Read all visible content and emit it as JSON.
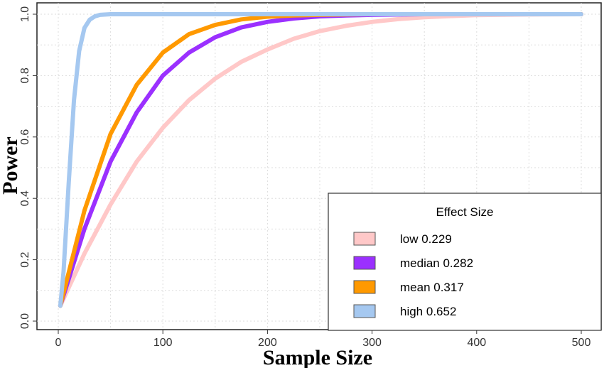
{
  "chart_data": {
    "type": "line",
    "xlabel": "Sample Size",
    "ylabel": "Power",
    "xlim": [
      0,
      500
    ],
    "ylim": [
      0,
      1.0
    ],
    "xticks": [
      0,
      100,
      200,
      300,
      400,
      500
    ],
    "yticks": [
      0.0,
      0.2,
      0.4,
      0.6,
      0.8,
      1.0
    ],
    "xtick_labels": [
      "0",
      "100",
      "200",
      "300",
      "400",
      "500"
    ],
    "ytick_labels": [
      "0.0",
      "0.2",
      "0.4",
      "0.6",
      "0.8",
      "1.0"
    ],
    "grid": true,
    "legend": {
      "title": "Effect Size",
      "position": "bottom-right"
    },
    "series": [
      {
        "name": "low 0.229",
        "color": "#ffc8c8",
        "x": [
          2,
          25,
          50,
          75,
          100,
          125,
          150,
          175,
          200,
          225,
          250,
          275,
          300,
          325,
          350,
          375,
          400,
          450,
          500
        ],
        "values": [
          0.05,
          0.22,
          0.38,
          0.52,
          0.63,
          0.72,
          0.79,
          0.845,
          0.885,
          0.92,
          0.945,
          0.962,
          0.975,
          0.984,
          0.99,
          0.994,
          0.997,
          0.999,
          1.0
        ]
      },
      {
        "name": "median 0.282",
        "color": "#9b30ff",
        "x": [
          2,
          25,
          50,
          75,
          100,
          125,
          150,
          175,
          200,
          225,
          250,
          275,
          300,
          350,
          400,
          500
        ],
        "values": [
          0.05,
          0.3,
          0.52,
          0.68,
          0.8,
          0.875,
          0.925,
          0.957,
          0.975,
          0.986,
          0.993,
          0.996,
          0.998,
          1.0,
          1.0,
          1.0
        ]
      },
      {
        "name": "mean 0.317",
        "color": "#ff9900",
        "x": [
          2,
          25,
          50,
          75,
          100,
          125,
          150,
          175,
          200,
          225,
          250,
          275,
          300,
          350,
          400,
          500
        ],
        "values": [
          0.05,
          0.36,
          0.61,
          0.77,
          0.875,
          0.935,
          0.965,
          0.983,
          0.992,
          0.996,
          0.998,
          0.999,
          1.0,
          1.0,
          1.0,
          1.0
        ]
      },
      {
        "name": "high 0.652",
        "color": "#a5c8f0",
        "x": [
          2,
          5,
          10,
          15,
          20,
          25,
          30,
          35,
          40,
          50,
          60,
          80,
          100,
          200,
          300,
          400,
          500
        ],
        "values": [
          0.05,
          0.16,
          0.45,
          0.72,
          0.88,
          0.955,
          0.982,
          0.993,
          0.998,
          1.0,
          1.0,
          1.0,
          1.0,
          1.0,
          1.0,
          1.0,
          1.0
        ]
      }
    ]
  }
}
